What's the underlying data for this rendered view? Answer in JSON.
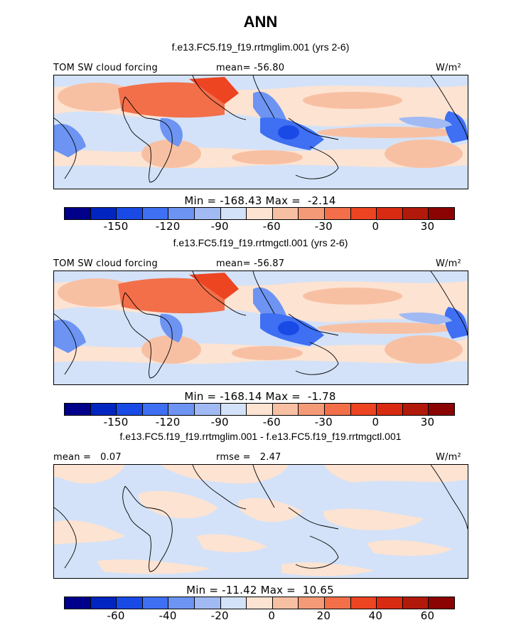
{
  "season": "ANN",
  "panels": [
    {
      "title": "f.e13.FC5.f19_f19.rrtmglim.001 (yrs 2-6)",
      "left_label": "TOM SW cloud forcing",
      "center_label": "mean= -56.80",
      "units": "W/m²",
      "minmax": "Min = -168.43 Max =  -2.14",
      "ticks": [
        "-150",
        "-120",
        "-90",
        "-60",
        "-30",
        "0",
        "30"
      ],
      "colors": [
        "#00008b",
        "#0025c0",
        "#1a4ae5",
        "#3f6ff2",
        "#6d94f2",
        "#a2baf3",
        "#d3e2f8",
        "#fde3d2",
        "#f8c0a3",
        "#f59a77",
        "#f26f4a",
        "#ed4422",
        "#d82b12",
        "#b11a0a",
        "#8b0303"
      ]
    },
    {
      "title": "f.e13.FC5.f19_f19.rrtmgctl.001 (yrs 2-6)",
      "left_label": "TOM SW cloud forcing",
      "center_label": "mean= -56.87",
      "units": "W/m²",
      "minmax": "Min = -168.14 Max =  -1.78",
      "ticks": [
        "-150",
        "-120",
        "-90",
        "-60",
        "-30",
        "0",
        "30"
      ],
      "colors": [
        "#00008b",
        "#0025c0",
        "#1a4ae5",
        "#3f6ff2",
        "#6d94f2",
        "#a2baf3",
        "#d3e2f8",
        "#fde3d2",
        "#f8c0a3",
        "#f59a77",
        "#f26f4a",
        "#ed4422",
        "#d82b12",
        "#b11a0a",
        "#8b0303"
      ]
    },
    {
      "title": "f.e13.FC5.f19_f19.rrtmglim.001 - f.e13.FC5.f19_f19.rrtmgctl.001",
      "left_label": "mean =   0.07",
      "center_label": "rmse =   2.47",
      "units": "W/m²",
      "minmax": "Min = -11.42 Max =  10.65",
      "ticks": [
        "-60",
        "-40",
        "-20",
        "0",
        "20",
        "40",
        "60"
      ],
      "colors": [
        "#00008b",
        "#0025c0",
        "#1a4ae5",
        "#3f6ff2",
        "#6d94f2",
        "#a2baf3",
        "#d3e2f8",
        "#fde3d2",
        "#f8c0a3",
        "#f59a77",
        "#f26f4a",
        "#ed4422",
        "#d82b12",
        "#b11a0a",
        "#8b0303"
      ]
    }
  ]
}
